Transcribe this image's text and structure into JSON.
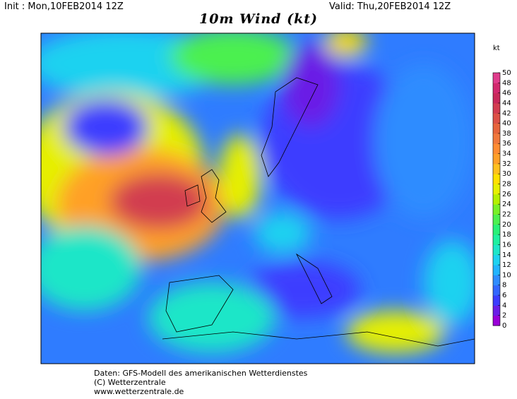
{
  "header": {
    "init": "Init : Mon,10FEB2014 12Z",
    "valid": "Valid: Thu,20FEB2014 12Z",
    "title": "10m Wind (kt)"
  },
  "colorbar": {
    "unit": "kt",
    "ticks": [
      0,
      2,
      4,
      6,
      8,
      10,
      12,
      14,
      16,
      18,
      20,
      22,
      24,
      26,
      28,
      30,
      32,
      34,
      36,
      38,
      40,
      42,
      44,
      46,
      48,
      50
    ],
    "colors": [
      "#9a00d8",
      "#6a1ee6",
      "#3c3cff",
      "#3366ff",
      "#2f8cff",
      "#22b4ff",
      "#1ed2f0",
      "#1ee6c8",
      "#1ef0a0",
      "#28f078",
      "#4cf050",
      "#78f028",
      "#b4f000",
      "#e6f000",
      "#ffe000",
      "#ffc01e",
      "#ffa028",
      "#ff8c32",
      "#f0783c",
      "#e6643c",
      "#dc5046",
      "#d23c50",
      "#c8285a",
      "#d2286e",
      "#e03c8c"
    ]
  },
  "footer": [
    "Daten: GFS-Modell des amerikanischen Wetterdienstes",
    "(C) Wetterzentrale",
    "www.wetterzentrale.de"
  ]
}
